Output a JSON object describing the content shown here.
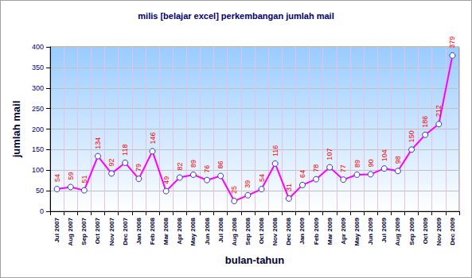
{
  "chart_data": {
    "type": "line",
    "title": "milis [belajar excel] perkembangan jumlah mail",
    "x_label": "bulan-tahun",
    "y_label": "jumlah mail",
    "categories": [
      "Jul 2007",
      "Aug 2007",
      "Sep 2007",
      "Oct 2007",
      "Nov 2007",
      "Dec 2007",
      "Jan 2008",
      "Feb 2008",
      "Mar 2008",
      "Apr 2008",
      "May 2008",
      "Jun 2008",
      "Jul 2008",
      "Aug 2008",
      "Sep 2008",
      "Oct 2008",
      "Nov 2008",
      "Dec 2008",
      "Jan 2009",
      "Feb 2009",
      "Mar 2009",
      "Apr 2009",
      "May 2009",
      "Jun 2009",
      "Jul 2009",
      "Aug 2009",
      "Sep 2009",
      "Oct 2009",
      "Nov 2009",
      "Dec 2009"
    ],
    "values": [
      54,
      59,
      51,
      134,
      92,
      118,
      79,
      146,
      49,
      82,
      89,
      76,
      86,
      25,
      39,
      54,
      116,
      31,
      64,
      78,
      107,
      77,
      89,
      90,
      104,
      98,
      150,
      186,
      212,
      379
    ],
    "color": "#ff00ff",
    "marker": "circle",
    "line_style": "solid",
    "ylim": [
      0,
      400
    ],
    "yticks": [
      0,
      50,
      100,
      150,
      200,
      250,
      300,
      350,
      400
    ],
    "grid": true,
    "data_labels": true
  }
}
